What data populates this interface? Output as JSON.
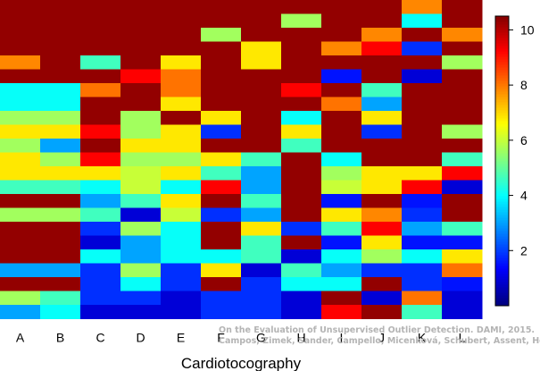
{
  "chart_data": {
    "type": "heatmap",
    "xlabel": "Cardiotocography",
    "columns": [
      "A",
      "B",
      "C",
      "D",
      "E",
      "F",
      "G",
      "H",
      "I",
      "J",
      "K",
      "L"
    ],
    "row_count": 23,
    "colorbar": {
      "min": 0,
      "max": 10.5,
      "ticks": [
        2,
        4,
        6,
        8,
        10
      ]
    },
    "colormap": "jet",
    "values": [
      [
        10.3,
        10.3,
        10.3,
        10.3,
        10.3,
        10.3,
        10.3,
        10.3,
        10.3,
        10.3,
        7.8,
        10.3
      ],
      [
        10.3,
        10.3,
        10.3,
        10.3,
        10.3,
        10.3,
        10.3,
        5.6,
        10.3,
        10.3,
        4.0,
        10.3
      ],
      [
        10.3,
        10.3,
        10.3,
        10.3,
        10.3,
        5.6,
        10.3,
        10.3,
        10.3,
        7.8,
        10.3,
        7.8
      ],
      [
        10.3,
        10.3,
        10.3,
        10.3,
        10.3,
        10.3,
        6.8,
        10.3,
        7.8,
        9.2,
        1.8,
        10.3
      ],
      [
        7.8,
        10.3,
        4.6,
        10.3,
        6.8,
        10.3,
        6.8,
        10.3,
        10.3,
        10.3,
        10.3,
        5.6
      ],
      [
        10.3,
        10.3,
        10.3,
        9.2,
        8.0,
        10.3,
        10.3,
        10.3,
        1.5,
        10.3,
        0.9,
        10.3
      ],
      [
        4.0,
        4.0,
        8.0,
        10.3,
        8.0,
        10.3,
        10.3,
        9.2,
        10.3,
        4.6,
        10.3,
        10.3
      ],
      [
        4.0,
        4.0,
        10.3,
        10.3,
        6.8,
        10.3,
        10.3,
        10.3,
        8.0,
        3.0,
        10.3,
        10.3
      ],
      [
        5.6,
        5.6,
        10.3,
        5.6,
        10.3,
        6.8,
        10.3,
        4.0,
        10.3,
        6.8,
        10.3,
        10.3
      ],
      [
        6.8,
        6.8,
        9.2,
        5.6,
        6.8,
        1.8,
        10.3,
        6.8,
        10.3,
        1.8,
        10.3,
        5.6
      ],
      [
        5.6,
        3.0,
        10.3,
        6.8,
        6.8,
        10.3,
        10.3,
        4.6,
        10.3,
        10.3,
        10.3,
        10.3
      ],
      [
        6.8,
        5.6,
        9.2,
        5.6,
        5.6,
        6.8,
        4.6,
        10.3,
        4.0,
        10.3,
        10.3,
        4.6
      ],
      [
        6.8,
        6.8,
        6.8,
        6.0,
        6.8,
        4.6,
        3.0,
        10.3,
        5.6,
        6.8,
        6.8,
        9.2
      ],
      [
        4.6,
        4.6,
        4.0,
        6.0,
        4.0,
        9.2,
        3.0,
        10.3,
        6.0,
        6.8,
        9.2,
        0.9
      ],
      [
        10.3,
        10.3,
        3.0,
        4.6,
        6.8,
        10.3,
        4.6,
        10.3,
        1.5,
        10.3,
        1.5,
        10.3
      ],
      [
        5.6,
        5.6,
        4.6,
        0.9,
        6.0,
        1.8,
        3.0,
        10.3,
        6.8,
        7.8,
        1.8,
        10.3
      ],
      [
        10.3,
        10.3,
        1.8,
        5.6,
        4.0,
        10.3,
        6.8,
        1.8,
        4.6,
        9.2,
        3.0,
        4.6
      ],
      [
        10.3,
        10.3,
        0.9,
        3.0,
        4.0,
        10.3,
        4.6,
        10.3,
        1.5,
        6.8,
        1.5,
        1.5
      ],
      [
        10.3,
        10.3,
        4.0,
        3.0,
        4.0,
        4.0,
        4.6,
        0.9,
        4.0,
        5.6,
        4.0,
        6.8
      ],
      [
        3.0,
        3.0,
        1.8,
        5.6,
        1.8,
        6.8,
        0.9,
        4.6,
        3.0,
        1.8,
        1.8,
        8.0
      ],
      [
        10.3,
        10.3,
        1.8,
        4.0,
        1.8,
        10.3,
        1.8,
        4.0,
        4.0,
        10.3,
        1.8,
        1.5
      ],
      [
        5.6,
        4.6,
        1.8,
        1.8,
        0.9,
        1.8,
        1.8,
        0.9,
        10.3,
        0.9,
        8.0,
        0.9
      ],
      [
        3.0,
        4.0,
        0.9,
        0.9,
        0.9,
        1.8,
        1.8,
        0.9,
        9.2,
        10.3,
        4.6,
        0.9
      ]
    ]
  },
  "watermark": {
    "line1": "On the Evaluation of Unsupervised Outlier Detection. DAMI, 2015.",
    "line2": "Campos, Zimek, Sander, Campello, Micenková, Schubert, Assent, Houle"
  }
}
